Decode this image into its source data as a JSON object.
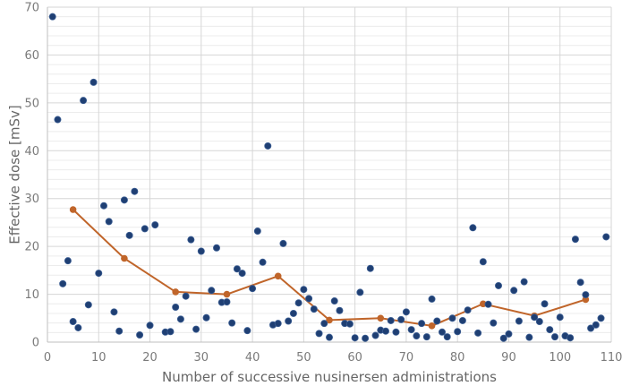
{
  "chart_data": {
    "type": "scatter",
    "xlabel": "Number of successive nusinersen administrations",
    "ylabel": "Effective dose [mSv]",
    "xlim": [
      0,
      110
    ],
    "ylim": [
      0,
      70
    ],
    "x_ticks": [
      0,
      10,
      20,
      30,
      40,
      50,
      60,
      70,
      80,
      90,
      100,
      110
    ],
    "y_ticks": [
      0,
      10,
      20,
      30,
      40,
      50,
      60,
      70
    ],
    "grid": true,
    "series": [
      {
        "kind": "scatter",
        "color": "#1f3f73",
        "x": [
          1,
          2,
          3,
          4,
          5,
          6,
          7,
          8,
          9,
          10,
          11,
          12,
          13,
          14,
          15,
          16,
          17,
          18,
          19,
          20,
          21,
          23,
          24,
          25,
          26,
          27,
          28,
          29,
          30,
          31,
          32,
          33,
          34,
          35,
          36,
          37,
          38,
          39,
          40,
          41,
          42,
          43,
          44,
          45,
          46,
          47,
          48,
          49,
          50,
          51,
          52,
          53,
          54,
          55,
          56,
          57,
          58,
          59,
          60,
          61,
          62,
          63,
          64,
          65,
          66,
          67,
          68,
          69,
          70,
          71,
          72,
          73,
          74,
          75,
          76,
          77,
          78,
          79,
          80,
          81,
          82,
          83,
          84,
          85,
          86,
          87,
          88,
          89,
          90,
          91,
          92,
          93,
          94,
          95,
          96,
          97,
          98,
          99,
          100,
          101,
          102,
          103,
          104,
          105,
          106,
          107,
          108,
          109
        ],
        "y": [
          68,
          46.5,
          12.2,
          17,
          4.3,
          3,
          50.5,
          7.8,
          54.3,
          14.4,
          28.5,
          25.2,
          6.3,
          2.3,
          29.7,
          22.3,
          31.5,
          1.5,
          23.7,
          3.5,
          24.5,
          2.1,
          2.2,
          7.3,
          4.8,
          9.6,
          21.4,
          2.7,
          19,
          5.1,
          10.8,
          19.7,
          8.3,
          8.4,
          4,
          15.3,
          14.4,
          2.4,
          11.2,
          23.2,
          16.7,
          41,
          3.6,
          3.9,
          20.6,
          4.4,
          6,
          8.2,
          11,
          9.1,
          6.9,
          1.8,
          3.9,
          1,
          8.6,
          6.6,
          3.9,
          3.8,
          0.9,
          10.4,
          0.8,
          15.4,
          1.4,
          2.5,
          2.3,
          4.5,
          2.1,
          4.7,
          6.3,
          2.6,
          1.3,
          3.9,
          1.1,
          9,
          4.4,
          2.1,
          1.1,
          5,
          2.2,
          4.5,
          6.7,
          23.9,
          1.9,
          16.8,
          7.9,
          4,
          11.8,
          0.8,
          1.7,
          10.8,
          4.4,
          12.6,
          1,
          5.2,
          4.3,
          8,
          2.6,
          1.1,
          5.2,
          1.3,
          0.9,
          21.5,
          12.5,
          9.9,
          2.9,
          3.6,
          5,
          22
        ]
      },
      {
        "kind": "line",
        "color": "#c0652a",
        "x": [
          5,
          15,
          25,
          35,
          45,
          55,
          65,
          75,
          85,
          95,
          105
        ],
        "y": [
          27.7,
          17.5,
          10.5,
          10,
          13.8,
          4.6,
          5,
          3.4,
          8,
          5.5,
          8.9
        ]
      }
    ]
  }
}
